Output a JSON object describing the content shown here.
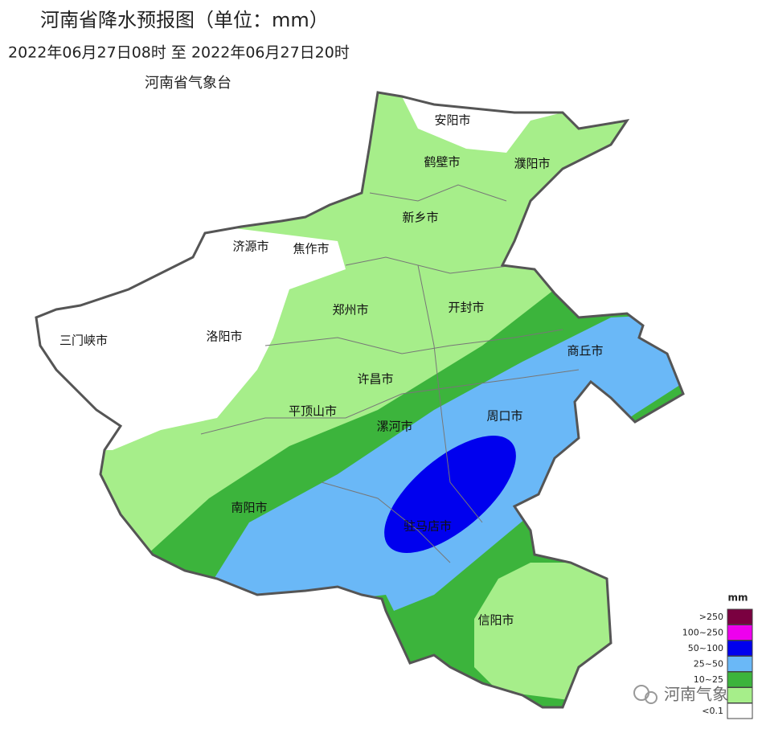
{
  "header": {
    "title": "河南省降水预报图（单位：mm）",
    "period": "2022年06月27日08时 至 2022年06月27日20时",
    "issuer": "河南省气象台"
  },
  "cities": [
    "安阳市",
    "鹤壁市",
    "濮阳市",
    "新乡市",
    "济源市",
    "焦作市",
    "郑州市",
    "开封市",
    "三门峡市",
    "洛阳市",
    "商丘市",
    "许昌市",
    "平顶山市",
    "漯河市",
    "周口市",
    "南阳市",
    "驻马店市",
    "信阳市"
  ],
  "legend": {
    "title": "mm",
    "items": [
      {
        "label": ">250",
        "color": "#7a0040"
      },
      {
        "label": "100~250",
        "color": "#ee00ee"
      },
      {
        "label": "50~100",
        "color": "#0000ee"
      },
      {
        "label": "25~50",
        "color": "#6ab8f7"
      },
      {
        "label": "10~25",
        "color": "#3cb43c"
      },
      {
        "label": null,
        "color": "#a6ee8a"
      },
      {
        "label": "<0.1",
        "color": "#ffffff"
      }
    ]
  },
  "watermark": "河南气象"
}
